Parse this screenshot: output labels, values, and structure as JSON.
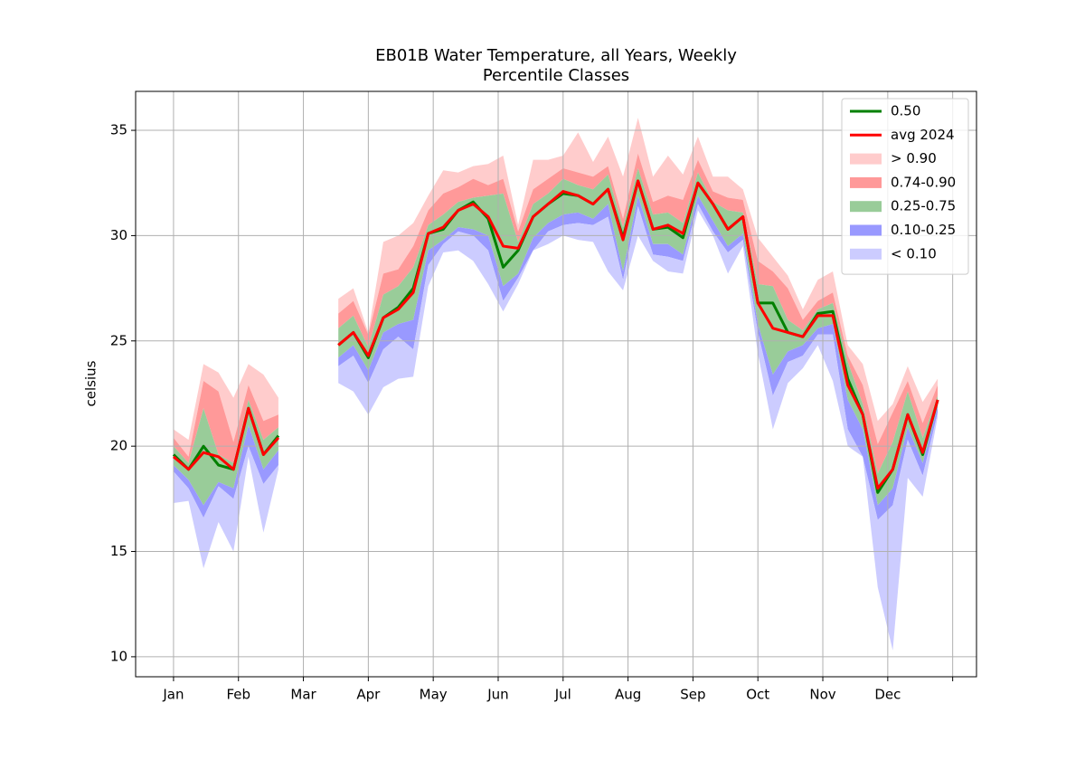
{
  "chart_data": {
    "type": "line",
    "title": [
      "EB01B Water Temperature, all Years, Weekly",
      "Percentile Classes"
    ],
    "ylabel": "celsius",
    "x": [
      0,
      1,
      2,
      3,
      4,
      5,
      6,
      7,
      8,
      9,
      10,
      11,
      12,
      13,
      14,
      15,
      16,
      17,
      18,
      19,
      20,
      21,
      22,
      23,
      24,
      25,
      26,
      27,
      28,
      29,
      30,
      31,
      32,
      33,
      34,
      35,
      36,
      37,
      38,
      39,
      40,
      41,
      42,
      43,
      44,
      45,
      46,
      47,
      48,
      49,
      50,
      51
    ],
    "xlim": [
      -2.53,
      53.59
    ],
    "xticks": [
      {
        "value": 0,
        "label": "Jan"
      },
      {
        "value": 4.333,
        "label": "Feb"
      },
      {
        "value": 8.667,
        "label": "Mar"
      },
      {
        "value": 13,
        "label": "Apr"
      },
      {
        "value": 17.333,
        "label": "May"
      },
      {
        "value": 21.667,
        "label": "Jun"
      },
      {
        "value": 26,
        "label": "Jul"
      },
      {
        "value": 30.333,
        "label": "Aug"
      },
      {
        "value": 34.667,
        "label": "Sep"
      },
      {
        "value": 39,
        "label": "Oct"
      },
      {
        "value": 43.333,
        "label": "Nov"
      },
      {
        "value": 47.667,
        "label": "Dec"
      },
      {
        "value": 52,
        "label": null
      }
    ],
    "ylim": [
      9.05,
      36.85
    ],
    "yticks": [
      10,
      15,
      20,
      25,
      30,
      35
    ],
    "grid": true,
    "legend": "upper right",
    "series": [
      {
        "name": "0.50",
        "color": "#008000",
        "values": [
          19.6,
          18.9,
          20.0,
          19.1,
          18.9,
          21.8,
          19.6,
          20.5,
          null,
          null,
          null,
          24.8,
          25.4,
          24.2,
          26.1,
          26.6,
          27.5,
          30.1,
          30.3,
          31.2,
          31.6,
          30.8,
          28.5,
          29.3,
          30.9,
          31.5,
          32.0,
          31.9,
          31.5,
          32.2,
          29.9,
          32.6,
          30.3,
          30.4,
          29.9,
          32.5,
          31.5,
          30.3,
          30.9,
          26.8,
          26.8,
          25.4,
          25.2,
          26.3,
          26.4,
          23.2,
          21.5,
          17.8,
          18.9,
          21.5,
          19.6,
          22.2
        ]
      },
      {
        "name": "avg 2024",
        "color": "#ff0000",
        "values": [
          19.5,
          18.9,
          19.7,
          19.5,
          18.9,
          21.8,
          19.6,
          20.4,
          null,
          null,
          null,
          24.8,
          25.4,
          24.3,
          26.1,
          26.5,
          27.3,
          30.1,
          30.4,
          31.2,
          31.5,
          30.9,
          29.5,
          29.4,
          30.9,
          31.5,
          32.1,
          31.9,
          31.5,
          32.2,
          29.8,
          32.6,
          30.3,
          30.5,
          30.1,
          32.5,
          31.5,
          30.3,
          30.9,
          26.8,
          25.6,
          25.4,
          25.2,
          26.2,
          26.2,
          22.9,
          21.5,
          18.0,
          18.9,
          21.5,
          19.7,
          22.2
        ]
      }
    ],
    "bands": [
      {
        "name": "> 0.90",
        "color": "#ffcccc",
        "lower": [
          20.4,
          19.5,
          23.1,
          22.6,
          20.2,
          22.9,
          21.2,
          21.5,
          null,
          null,
          null,
          26.3,
          26.9,
          25.3,
          28.2,
          28.4,
          29.5,
          31.2,
          32.0,
          32.3,
          32.7,
          32.4,
          32.7,
          30.2,
          32.2,
          32.7,
          33.2,
          33.0,
          32.8,
          33.3,
          30.8,
          33.9,
          31.6,
          31.9,
          31.7,
          33.6,
          32.1,
          31.8,
          31.7,
          28.8,
          28.3,
          27.5,
          26.0,
          26.9,
          27.3,
          24.3,
          22.9,
          20.1,
          21.6,
          23.1,
          21.1,
          22.9
        ],
        "upper": [
          20.8,
          20.3,
          23.9,
          23.5,
          22.3,
          23.9,
          23.4,
          22.3,
          null,
          null,
          null,
          27.0,
          27.5,
          25.4,
          29.7,
          30.0,
          30.6,
          31.9,
          33.1,
          33.0,
          33.3,
          33.4,
          33.8,
          30.5,
          33.6,
          33.6,
          33.8,
          34.9,
          33.5,
          34.7,
          32.8,
          35.6,
          32.8,
          33.8,
          32.9,
          34.7,
          32.8,
          32.8,
          32.2,
          29.9,
          29.0,
          28.1,
          26.5,
          27.9,
          28.3,
          24.8,
          23.9,
          21.2,
          22.0,
          23.8,
          22.1,
          23.2
        ]
      },
      {
        "name": "0.74-0.90",
        "color": "#ff9999",
        "lower": [
          20.0,
          19.2,
          21.8,
          19.6,
          19.2,
          22.2,
          20.3,
          20.9,
          null,
          null,
          null,
          25.6,
          26.2,
          24.7,
          27.2,
          27.6,
          28.5,
          30.5,
          31.0,
          31.6,
          31.8,
          31.9,
          32.0,
          29.7,
          31.5,
          32.0,
          32.7,
          32.4,
          32.2,
          32.9,
          30.4,
          33.2,
          31.0,
          31.1,
          30.6,
          33.0,
          31.6,
          31.2,
          31.1,
          27.7,
          27.6,
          26.0,
          25.5,
          26.5,
          26.8,
          24.0,
          22.0,
          18.7,
          20.2,
          22.6,
          20.4,
          22.4
        ],
        "upper": [
          20.4,
          19.5,
          23.1,
          22.6,
          20.2,
          22.9,
          21.2,
          21.5,
          null,
          null,
          null,
          26.3,
          26.9,
          25.3,
          28.2,
          28.4,
          29.5,
          31.2,
          32.0,
          32.3,
          32.7,
          32.4,
          32.7,
          30.2,
          32.2,
          32.7,
          33.2,
          33.0,
          32.8,
          33.3,
          30.8,
          33.9,
          31.6,
          31.9,
          31.7,
          33.6,
          32.1,
          31.8,
          31.7,
          28.8,
          28.3,
          27.5,
          26.0,
          26.9,
          27.3,
          24.3,
          22.9,
          20.1,
          21.6,
          23.1,
          21.1,
          22.9
        ]
      },
      {
        "name": "0.25-0.75",
        "color": "#99cc99",
        "lower": [
          19.1,
          18.4,
          17.2,
          18.3,
          18.0,
          21.0,
          18.9,
          19.8,
          null,
          null,
          null,
          24.2,
          24.8,
          23.6,
          25.4,
          25.8,
          26.0,
          29.3,
          29.8,
          30.4,
          30.3,
          30.0,
          27.6,
          28.2,
          29.9,
          30.6,
          31.0,
          31.1,
          30.8,
          31.5,
          28.3,
          31.9,
          29.6,
          29.6,
          29.1,
          31.9,
          30.7,
          29.5,
          30.1,
          25.8,
          23.4,
          24.5,
          24.8,
          25.6,
          25.8,
          22.2,
          20.8,
          17.2,
          18.0,
          20.9,
          19.2,
          21.9
        ],
        "upper": [
          20.0,
          19.2,
          21.8,
          19.6,
          19.2,
          22.2,
          20.3,
          20.9,
          null,
          null,
          null,
          25.6,
          26.2,
          24.7,
          27.2,
          27.6,
          28.5,
          30.5,
          31.0,
          31.6,
          31.8,
          31.9,
          32.0,
          29.7,
          31.5,
          32.0,
          32.7,
          32.4,
          32.2,
          32.9,
          30.4,
          33.2,
          31.0,
          31.1,
          30.6,
          33.0,
          31.6,
          31.2,
          31.1,
          27.7,
          27.6,
          26.0,
          25.5,
          26.5,
          26.8,
          24.0,
          22.0,
          18.7,
          20.2,
          22.6,
          20.4,
          22.4
        ]
      },
      {
        "name": "0.10-0.25",
        "color": "#9999ff",
        "lower": [
          18.8,
          18.0,
          16.6,
          18.1,
          17.5,
          20.0,
          18.2,
          19.1,
          null,
          null,
          null,
          23.8,
          24.3,
          23.0,
          24.6,
          25.2,
          24.6,
          28.6,
          29.6,
          30.2,
          30.0,
          29.3,
          26.9,
          28.0,
          29.3,
          30.2,
          30.5,
          30.6,
          30.5,
          30.9,
          27.9,
          31.4,
          29.1,
          29.0,
          28.8,
          31.5,
          30.2,
          29.2,
          29.8,
          25.4,
          22.4,
          24.0,
          24.3,
          25.3,
          25.3,
          20.8,
          19.5,
          16.5,
          17.2,
          20.3,
          18.6,
          21.6
        ],
        "upper": [
          19.1,
          18.4,
          17.2,
          18.3,
          18.0,
          21.0,
          18.9,
          19.8,
          null,
          null,
          null,
          24.2,
          24.8,
          23.6,
          25.4,
          25.8,
          26.0,
          29.3,
          29.8,
          30.4,
          30.3,
          30.0,
          27.6,
          28.2,
          29.9,
          30.6,
          31.0,
          31.1,
          30.8,
          31.5,
          28.3,
          31.9,
          29.6,
          29.6,
          29.1,
          31.9,
          30.7,
          29.5,
          30.1,
          25.8,
          23.4,
          24.5,
          24.8,
          25.6,
          25.8,
          22.2,
          20.8,
          17.2,
          18.0,
          20.9,
          19.2,
          21.9
        ]
      },
      {
        "name": "< 0.10",
        "color": "#ccccff",
        "lower": [
          17.3,
          17.4,
          14.2,
          16.4,
          15.0,
          19.5,
          15.9,
          18.9,
          null,
          null,
          null,
          23.0,
          22.6,
          21.5,
          22.8,
          23.2,
          23.3,
          27.6,
          29.2,
          29.3,
          28.8,
          27.7,
          26.4,
          27.7,
          29.3,
          29.6,
          30.0,
          29.8,
          29.7,
          28.3,
          27.4,
          30.0,
          28.8,
          28.3,
          28.2,
          31.2,
          30.0,
          28.2,
          29.5,
          24.4,
          20.8,
          23.0,
          23.7,
          24.8,
          23.1,
          20.0,
          19.5,
          13.3,
          10.3,
          18.5,
          17.6,
          21.4
        ],
        "upper": [
          18.8,
          18.0,
          16.6,
          18.1,
          17.5,
          20.0,
          18.2,
          19.1,
          null,
          null,
          null,
          23.8,
          24.3,
          23.0,
          24.6,
          25.2,
          24.6,
          28.6,
          29.6,
          30.2,
          30.0,
          29.3,
          26.9,
          28.0,
          29.3,
          30.2,
          30.5,
          30.6,
          30.5,
          30.9,
          27.9,
          31.4,
          29.1,
          29.0,
          28.8,
          31.5,
          30.2,
          29.2,
          29.8,
          25.4,
          22.4,
          24.0,
          24.3,
          25.3,
          25.3,
          20.8,
          19.5,
          16.5,
          17.2,
          20.3,
          18.6,
          21.6
        ]
      }
    ]
  }
}
